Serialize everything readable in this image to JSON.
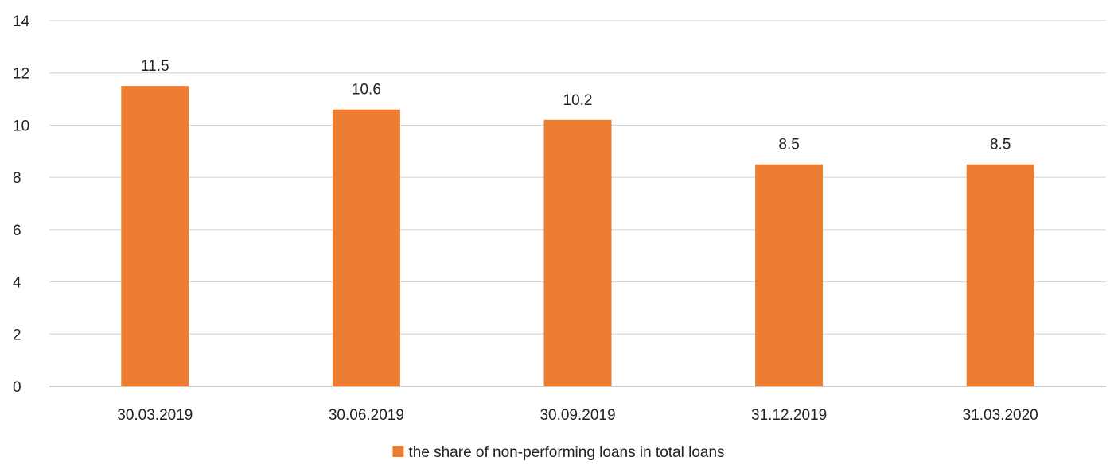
{
  "chart_data": {
    "type": "bar",
    "title": "",
    "xlabel": "",
    "ylabel": "",
    "categories": [
      "30.03.2019",
      "30.06.2019",
      "30.09.2019",
      "31.12.2019",
      "31.03.2020"
    ],
    "series": [
      {
        "name": "the share of non-performing loans in total loans",
        "values": [
          11.5,
          10.6,
          10.2,
          8.5,
          8.5
        ],
        "data_labels": [
          "11.5",
          "10.6",
          "10.2",
          "8.5",
          "8.5"
        ],
        "color": "#ED7D31"
      }
    ],
    "ylim": [
      0,
      14
    ],
    "yticks": [
      0,
      2,
      4,
      6,
      8,
      10,
      12,
      14
    ],
    "ytick_labels": [
      "0",
      "2",
      "4",
      "6",
      "8",
      "10",
      "12",
      "14"
    ],
    "grid": true,
    "gridline_color": "#D9D9D9",
    "axis_color": "#BFBFBF",
    "legend_position": "bottom"
  }
}
